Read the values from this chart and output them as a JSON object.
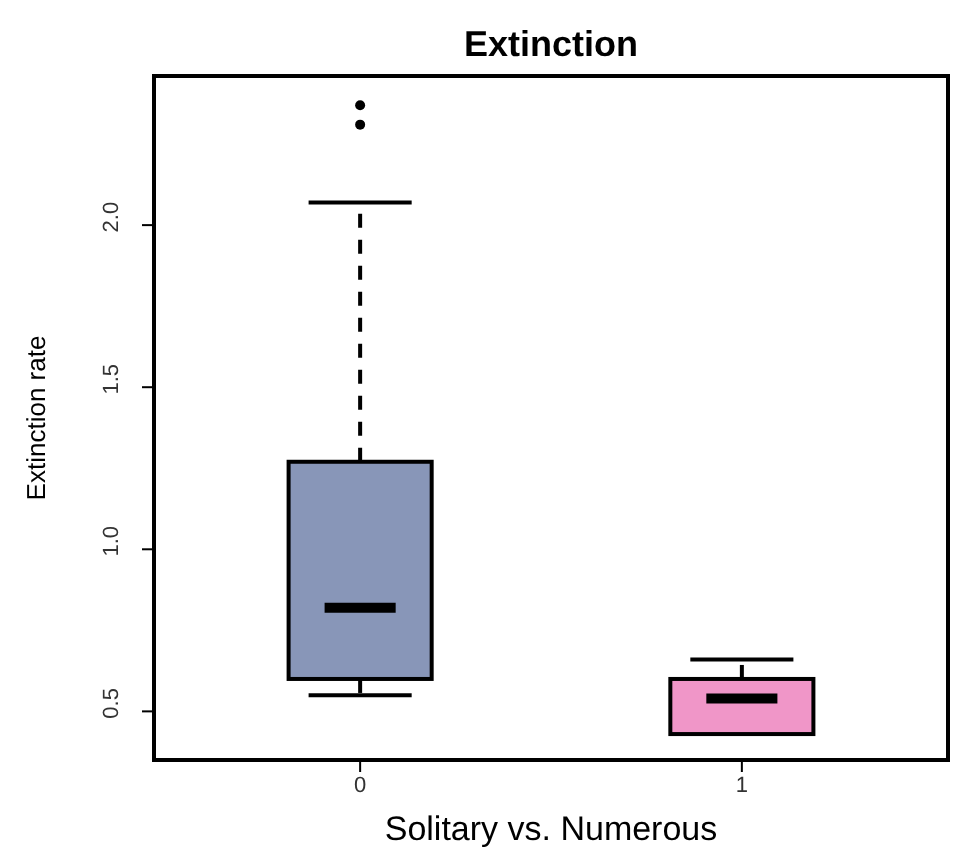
{
  "chart_data": {
    "type": "box",
    "title": "Extinction",
    "xlabel": "Solitary vs. Numerous",
    "ylabel": "Extinction rate",
    "categories": [
      "0",
      "1"
    ],
    "colors": [
      "#8896b8",
      "#f096c8"
    ],
    "boxes": [
      {
        "low": 0.55,
        "q1": 0.6,
        "median": 0.82,
        "q3": 1.27,
        "high": 2.07,
        "outliers": [
          2.31,
          2.37
        ]
      },
      {
        "low": 0.43,
        "q1": 0.43,
        "median": 0.54,
        "q3": 0.6,
        "high": 0.66
      }
    ],
    "ylim": [
      0.35,
      2.46
    ],
    "yticks": [
      {
        "value": 0.5,
        "label": "0.5"
      },
      {
        "value": 1,
        "label": "1.0"
      },
      {
        "value": 1.5,
        "label": "1.5"
      },
      {
        "value": 2,
        "label": "2.0"
      }
    ]
  }
}
